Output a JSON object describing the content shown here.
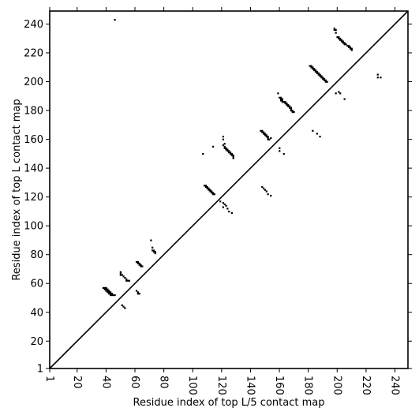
{
  "chart_data": {
    "type": "scatter",
    "title": "",
    "xlabel": "Residue index of top L/5 contact map",
    "ylabel": "Residue index of top L contact map",
    "xlim": [
      1,
      249
    ],
    "ylim": [
      1,
      249
    ],
    "xticks": [
      1,
      20,
      40,
      60,
      80,
      100,
      120,
      140,
      160,
      180,
      200,
      220,
      240
    ],
    "yticks": [
      1,
      20,
      40,
      60,
      80,
      100,
      120,
      140,
      160,
      180,
      200,
      220,
      240
    ],
    "xtick_labels": [
      "1",
      "20",
      "40",
      "60",
      "80",
      "100",
      "120",
      "140",
      "160",
      "180",
      "200",
      "220",
      "240"
    ],
    "ytick_labels": [
      "1",
      "20",
      "40",
      "60",
      "80",
      "100",
      "120",
      "140",
      "160",
      "180",
      "200",
      "220",
      "240"
    ],
    "grid": false,
    "diagonal": {
      "from": [
        1,
        1
      ],
      "to": [
        249,
        249
      ]
    },
    "series": [
      {
        "role": "above-diagonal",
        "points": [
          [
            46,
            243
          ],
          [
            38,
            57
          ],
          [
            39,
            57
          ],
          [
            40,
            57
          ],
          [
            39,
            56
          ],
          [
            40,
            56
          ],
          [
            41,
            56
          ],
          [
            40,
            55
          ],
          [
            41,
            55
          ],
          [
            42,
            55
          ],
          [
            41,
            54
          ],
          [
            42,
            54
          ],
          [
            43,
            54
          ],
          [
            42,
            53
          ],
          [
            43,
            53
          ],
          [
            44,
            53
          ],
          [
            43,
            52
          ],
          [
            44,
            52
          ],
          [
            45,
            52
          ],
          [
            46,
            52
          ],
          [
            50,
            68
          ],
          [
            50,
            67
          ],
          [
            50,
            66
          ],
          [
            51,
            66
          ],
          [
            52,
            65
          ],
          [
            53,
            64
          ],
          [
            54,
            63
          ],
          [
            54,
            62
          ],
          [
            55,
            62
          ],
          [
            56,
            62
          ],
          [
            61,
            75
          ],
          [
            62,
            75
          ],
          [
            62,
            74
          ],
          [
            63,
            74
          ],
          [
            63,
            73
          ],
          [
            64,
            73
          ],
          [
            64,
            72
          ],
          [
            65,
            72
          ],
          [
            71,
            90
          ],
          [
            72,
            85
          ],
          [
            72,
            83
          ],
          [
            73,
            83
          ],
          [
            73,
            82
          ],
          [
            74,
            82
          ],
          [
            74,
            81
          ],
          [
            108,
            128
          ],
          [
            109,
            128
          ],
          [
            109,
            127
          ],
          [
            110,
            127
          ],
          [
            110,
            126
          ],
          [
            111,
            126
          ],
          [
            111,
            125
          ],
          [
            112,
            125
          ],
          [
            112,
            124
          ],
          [
            113,
            124
          ],
          [
            113,
            123
          ],
          [
            114,
            123
          ],
          [
            114,
            122
          ],
          [
            115,
            122
          ],
          [
            114,
            155
          ],
          [
            121,
            162
          ],
          [
            121,
            160
          ],
          [
            121,
            156
          ],
          [
            122,
            157
          ],
          [
            122,
            155
          ],
          [
            122,
            154
          ],
          [
            123,
            154
          ],
          [
            123,
            153
          ],
          [
            124,
            153
          ],
          [
            124,
            152
          ],
          [
            125,
            152
          ],
          [
            125,
            151
          ],
          [
            126,
            151
          ],
          [
            126,
            150
          ],
          [
            127,
            150
          ],
          [
            127,
            149
          ],
          [
            128,
            149
          ],
          [
            128,
            148
          ],
          [
            128,
            147
          ],
          [
            147,
            166
          ],
          [
            148,
            166
          ],
          [
            148,
            165
          ],
          [
            149,
            165
          ],
          [
            149,
            164
          ],
          [
            150,
            164
          ],
          [
            150,
            163
          ],
          [
            151,
            163
          ],
          [
            151,
            162
          ],
          [
            152,
            162
          ],
          [
            152,
            161
          ],
          [
            152,
            160
          ],
          [
            153,
            160
          ],
          [
            154,
            161
          ],
          [
            159,
            192
          ],
          [
            160,
            189
          ],
          [
            161,
            189
          ],
          [
            161,
            188
          ],
          [
            161,
            187
          ],
          [
            162,
            188
          ],
          [
            162,
            187
          ],
          [
            162,
            186
          ],
          [
            163,
            186
          ],
          [
            164,
            186
          ],
          [
            164,
            185
          ],
          [
            165,
            185
          ],
          [
            165,
            184
          ],
          [
            166,
            184
          ],
          [
            166,
            183
          ],
          [
            167,
            183
          ],
          [
            167,
            182
          ],
          [
            168,
            182
          ],
          [
            168,
            181
          ],
          [
            168,
            180
          ],
          [
            169,
            180
          ],
          [
            169,
            179
          ],
          [
            170,
            179
          ],
          [
            181,
            211
          ],
          [
            182,
            211
          ],
          [
            182,
            210
          ],
          [
            183,
            210
          ],
          [
            183,
            209
          ],
          [
            184,
            209
          ],
          [
            184,
            208
          ],
          [
            185,
            208
          ],
          [
            185,
            207
          ],
          [
            186,
            207
          ],
          [
            186,
            206
          ],
          [
            187,
            206
          ],
          [
            187,
            205
          ],
          [
            188,
            205
          ],
          [
            188,
            204
          ],
          [
            189,
            204
          ],
          [
            189,
            203
          ],
          [
            190,
            203
          ],
          [
            190,
            202
          ],
          [
            191,
            202
          ],
          [
            191,
            201
          ],
          [
            192,
            201
          ],
          [
            192,
            200
          ],
          [
            193,
            200
          ],
          [
            198,
            237
          ],
          [
            198,
            236
          ],
          [
            199,
            236
          ],
          [
            199,
            234
          ],
          [
            200,
            231
          ],
          [
            201,
            231
          ],
          [
            201,
            230
          ],
          [
            202,
            230
          ],
          [
            202,
            229
          ],
          [
            203,
            229
          ],
          [
            203,
            228
          ],
          [
            204,
            228
          ],
          [
            204,
            227
          ],
          [
            205,
            227
          ],
          [
            205,
            226
          ],
          [
            206,
            226
          ],
          [
            207,
            225
          ],
          [
            208,
            225
          ],
          [
            208,
            224
          ],
          [
            209,
            224
          ],
          [
            209,
            223
          ],
          [
            210,
            223
          ],
          [
            210,
            222
          ]
        ]
      },
      {
        "role": "below-diagonal",
        "points": [
          [
            51,
            45
          ],
          [
            52,
            44
          ],
          [
            53,
            43
          ],
          [
            61,
            55
          ],
          [
            62,
            54
          ],
          [
            62,
            53
          ],
          [
            63,
            53
          ],
          [
            107,
            150
          ],
          [
            119,
            117
          ],
          [
            121,
            116
          ],
          [
            121,
            113
          ],
          [
            122,
            115
          ],
          [
            123,
            114
          ],
          [
            124,
            112
          ],
          [
            125,
            110
          ],
          [
            127,
            109
          ],
          [
            148,
            127
          ],
          [
            149,
            126
          ],
          [
            150,
            125
          ],
          [
            151,
            124
          ],
          [
            152,
            122
          ],
          [
            154,
            121
          ],
          [
            160,
            154
          ],
          [
            160,
            152
          ],
          [
            163,
            150
          ],
          [
            183,
            166
          ],
          [
            186,
            164
          ],
          [
            188,
            162
          ],
          [
            199,
            192
          ],
          [
            201,
            193
          ],
          [
            202,
            192
          ],
          [
            205,
            188
          ],
          [
            228,
            205
          ],
          [
            228,
            203
          ],
          [
            230,
            203
          ]
        ]
      }
    ]
  }
}
